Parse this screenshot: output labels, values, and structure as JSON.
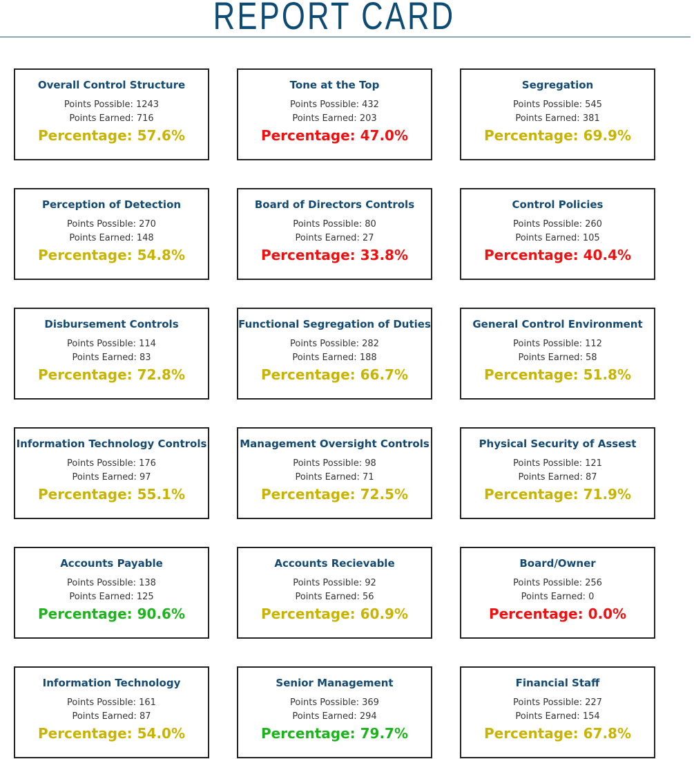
{
  "title": "REPORT CARD",
  "labels": {
    "possible": "Points Possible:",
    "earned": "Points Earned:",
    "percentage": "Percentage:"
  },
  "colors": {
    "title": "#0d4b74",
    "card_title": "#144a72",
    "pct_green": "#1cb31c",
    "pct_yellow": "#c8b400",
    "pct_red": "#ee1111"
  },
  "cards": [
    {
      "title": "Overall Control Structure",
      "possible": "1243",
      "earned": "716",
      "percentage": "57.6%",
      "level": "yellow"
    },
    {
      "title": "Tone at the Top",
      "possible": "432",
      "earned": "203",
      "percentage": "47.0%",
      "level": "red"
    },
    {
      "title": "Segregation",
      "possible": "545",
      "earned": "381",
      "percentage": "69.9%",
      "level": "yellow"
    },
    {
      "title": "Perception of Detection",
      "possible": "270",
      "earned": "148",
      "percentage": "54.8%",
      "level": "yellow"
    },
    {
      "title": "Board of Directors Controls",
      "possible": "80",
      "earned": "27",
      "percentage": "33.8%",
      "level": "red"
    },
    {
      "title": "Control Policies",
      "possible": "260",
      "earned": "105",
      "percentage": "40.4%",
      "level": "red"
    },
    {
      "title": "Disbursement Controls",
      "possible": "114",
      "earned": "83",
      "percentage": "72.8%",
      "level": "yellow"
    },
    {
      "title": "Functional Segregation of Duties",
      "possible": "282",
      "earned": "188",
      "percentage": "66.7%",
      "level": "yellow"
    },
    {
      "title": "General Control Environment",
      "possible": "112",
      "earned": "58",
      "percentage": "51.8%",
      "level": "yellow"
    },
    {
      "title": "Information Technology Controls",
      "possible": "176",
      "earned": "97",
      "percentage": "55.1%",
      "level": "yellow"
    },
    {
      "title": "Management Oversight Controls",
      "possible": "98",
      "earned": "71",
      "percentage": "72.5%",
      "level": "yellow"
    },
    {
      "title": "Physical Security of Assest",
      "possible": "121",
      "earned": "87",
      "percentage": "71.9%",
      "level": "yellow"
    },
    {
      "title": "Accounts Payable",
      "possible": "138",
      "earned": "125",
      "percentage": "90.6%",
      "level": "green"
    },
    {
      "title": "Accounts Recievable",
      "possible": "92",
      "earned": "56",
      "percentage": "60.9%",
      "level": "yellow"
    },
    {
      "title": "Board/Owner",
      "possible": "256",
      "earned": "0",
      "percentage": "0.0%",
      "level": "red"
    },
    {
      "title": "Information Technology",
      "possible": "161",
      "earned": "87",
      "percentage": "54.0%",
      "level": "yellow"
    },
    {
      "title": "Senior Management",
      "possible": "369",
      "earned": "294",
      "percentage": "79.7%",
      "level": "green"
    },
    {
      "title": "Financial Staff",
      "possible": "227",
      "earned": "154",
      "percentage": "67.8%",
      "level": "yellow"
    }
  ]
}
